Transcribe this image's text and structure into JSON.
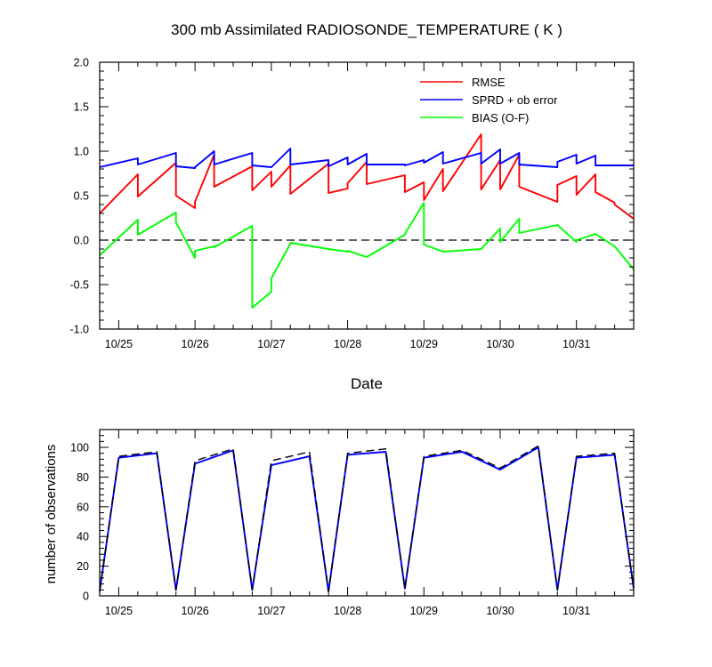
{
  "chart_data": [
    {
      "type": "line",
      "title": "300 mb Assimilated RADIOSONDE_TEMPERATURE ( K )",
      "xlabel": "Date",
      "ylabel": "",
      "x_ticks": [
        "10/25",
        "10/26",
        "10/27",
        "10/28",
        "10/29",
        "10/30",
        "10/31"
      ],
      "y_ticks": [
        "-1.0",
        "-0.5",
        "0.0",
        "0.5",
        "1.0",
        "1.5",
        "2.0"
      ],
      "ylim": [
        -1.0,
        2.0
      ],
      "xlim": [
        -0.25,
        6.75
      ],
      "zero_line": "dashed",
      "legend_position": "top-right",
      "series": [
        {
          "name": "RMSE",
          "color": "#ff0000",
          "x": [
            -0.25,
            0.25,
            0.25,
            0.75,
            0.75,
            1.0,
            1.0,
            1.25,
            1.25,
            1.75,
            1.75,
            2.0,
            2.0,
            2.25,
            2.25,
            2.75,
            2.75,
            3.0,
            3.0,
            3.25,
            3.25,
            3.75,
            3.75,
            4.0,
            4.0,
            4.25,
            4.25,
            4.75,
            4.75,
            5.0,
            5.0,
            5.25,
            5.25,
            5.75,
            5.75,
            6.0,
            6.0,
            6.25,
            6.25,
            6.5,
            6.5,
            6.75
          ],
          "y": [
            0.3,
            0.74,
            0.49,
            0.87,
            0.5,
            0.36,
            0.43,
            0.96,
            0.6,
            0.83,
            0.56,
            0.77,
            0.6,
            0.84,
            0.52,
            0.86,
            0.53,
            0.58,
            0.64,
            0.88,
            0.63,
            0.73,
            0.54,
            0.65,
            0.45,
            0.8,
            0.55,
            1.19,
            0.57,
            0.9,
            0.57,
            0.96,
            0.6,
            0.43,
            0.62,
            0.72,
            0.51,
            0.74,
            0.54,
            0.42,
            0.4,
            0.24
          ]
        },
        {
          "name": "SPRD + ob error",
          "color": "#0000ff",
          "x": [
            -0.25,
            0.25,
            0.25,
            0.75,
            0.75,
            1.0,
            1.0,
            1.25,
            1.25,
            1.75,
            1.75,
            2.0,
            2.0,
            2.25,
            2.25,
            2.75,
            2.75,
            3.0,
            3.0,
            3.25,
            3.25,
            3.75,
            3.75,
            4.0,
            4.0,
            4.25,
            4.25,
            4.75,
            4.75,
            5.0,
            5.0,
            5.25,
            5.25,
            5.75,
            5.75,
            6.0,
            6.0,
            6.25,
            6.25,
            6.5,
            6.5,
            6.75
          ],
          "y": [
            0.82,
            0.92,
            0.85,
            0.98,
            0.83,
            0.81,
            0.82,
            1.0,
            0.85,
            0.98,
            0.84,
            0.82,
            0.82,
            1.03,
            0.85,
            0.9,
            0.83,
            0.93,
            0.85,
            0.97,
            0.85,
            0.85,
            0.84,
            0.9,
            0.87,
            0.99,
            0.86,
            0.98,
            0.86,
            1.02,
            0.86,
            0.98,
            0.85,
            0.82,
            0.88,
            0.96,
            0.86,
            0.95,
            0.84,
            0.84,
            0.84,
            0.84
          ]
        },
        {
          "name": "BIAS (O-F)",
          "color": "#00ff00",
          "x": [
            -0.25,
            0.25,
            0.25,
            0.75,
            0.75,
            1.0,
            1.0,
            1.25,
            1.25,
            1.75,
            1.75,
            2.0,
            2.0,
            2.25,
            2.25,
            2.75,
            2.75,
            3.0,
            3.0,
            3.25,
            3.25,
            3.75,
            3.75,
            4.0,
            4.0,
            4.25,
            4.25,
            4.75,
            4.75,
            5.0,
            5.0,
            5.25,
            5.25,
            5.75,
            5.75,
            6.0,
            6.0,
            6.25,
            6.25,
            6.5,
            6.5,
            6.75
          ],
          "y": [
            -0.17,
            0.23,
            0.06,
            0.31,
            0.2,
            -0.2,
            -0.12,
            -0.07,
            -0.08,
            0.16,
            -0.76,
            -0.58,
            -0.43,
            -0.04,
            -0.03,
            -0.1,
            -0.1,
            -0.13,
            -0.12,
            -0.19,
            -0.19,
            0.06,
            0.07,
            0.42,
            -0.05,
            -0.13,
            -0.13,
            -0.1,
            -0.1,
            0.13,
            -0.02,
            0.24,
            0.08,
            0.17,
            0.17,
            -0.02,
            0.0,
            0.07,
            0.07,
            -0.07,
            -0.07,
            -0.33
          ]
        }
      ]
    },
    {
      "type": "line",
      "title": "",
      "xlabel": "",
      "ylabel": "number of observations",
      "x_ticks": [
        "10/25",
        "10/26",
        "10/27",
        "10/28",
        "10/29",
        "10/30",
        "10/31"
      ],
      "y_ticks": [
        "0",
        "20",
        "40",
        "60",
        "80",
        "100"
      ],
      "ylim": [
        0,
        112
      ],
      "xlim": [
        -0.25,
        6.75
      ],
      "series": [
        {
          "style": "solid",
          "color": "#0000ff",
          "x": [
            -0.25,
            0.0,
            0.5,
            0.75,
            1.0,
            1.5,
            1.75,
            2.0,
            2.5,
            2.75,
            3.0,
            3.5,
            3.75,
            4.0,
            4.5,
            5.0,
            5.5,
            5.75,
            6.0,
            6.5,
            6.75
          ],
          "y": [
            3,
            93,
            96,
            4,
            89,
            98,
            4,
            88,
            94,
            3,
            95,
            97,
            5,
            93,
            97,
            85,
            100,
            4,
            93,
            95,
            5
          ]
        },
        {
          "style": "dashed",
          "color": "#000000",
          "x": [
            -0.25,
            0.0,
            0.5,
            0.75,
            1.0,
            1.5,
            1.75,
            2.0,
            2.5,
            2.75,
            3.0,
            3.5,
            3.75,
            4.0,
            4.5,
            5.0,
            5.5,
            5.75,
            6.0,
            6.5,
            6.75
          ],
          "y": [
            3,
            94,
            97,
            4,
            91,
            99,
            4,
            91,
            97,
            3,
            96,
            99,
            5,
            94,
            98,
            86,
            101,
            4,
            94,
            96,
            5
          ]
        }
      ]
    }
  ]
}
